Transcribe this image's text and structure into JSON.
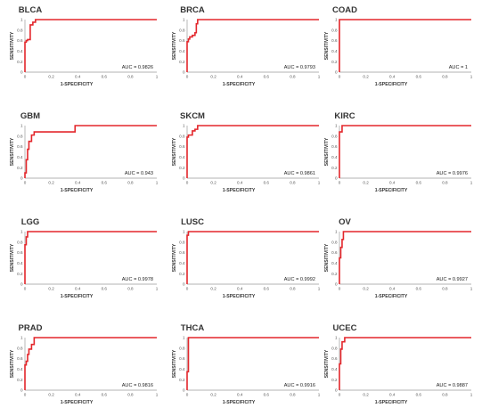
{
  "figure": {
    "xlabel": "1-SPECIFICITY",
    "ylabel": "SENSITIVITY",
    "xticks": [
      "0",
      "0.2",
      "0.4",
      "0.6",
      "0.8",
      "1"
    ],
    "yticks": [
      "0",
      "0.2",
      "0.4",
      "0.6",
      "0.8",
      "1"
    ],
    "curve_color": "#e3262b",
    "axis_color": "#9a9a9a"
  },
  "chart_data": [
    {
      "type": "line",
      "title": "BLCA",
      "auc_text": "AUC = 0.9826",
      "xlim": [
        0,
        1
      ],
      "ylim": [
        0,
        1
      ],
      "x": [
        0,
        0,
        0.01,
        0.01,
        0.02,
        0.02,
        0.04,
        0.04,
        0.06,
        0.06,
        0.08,
        0.08,
        1
      ],
      "y": [
        0,
        0.57,
        0.57,
        0.6,
        0.6,
        0.62,
        0.62,
        0.9,
        0.9,
        0.95,
        0.95,
        1,
        1
      ]
    },
    {
      "type": "line",
      "title": "BRCA",
      "auc_text": "AUC = 0.9793",
      "xlim": [
        0,
        1
      ],
      "ylim": [
        0,
        1
      ],
      "x": [
        0,
        0,
        0.01,
        0.01,
        0.02,
        0.02,
        0.04,
        0.04,
        0.06,
        0.06,
        0.07,
        0.07,
        0.08,
        0.08,
        1
      ],
      "y": [
        0,
        0.58,
        0.58,
        0.63,
        0.63,
        0.67,
        0.67,
        0.7,
        0.7,
        0.75,
        0.75,
        0.92,
        0.92,
        1,
        1
      ]
    },
    {
      "type": "line",
      "title": "COAD",
      "auc_text": "AUC = 1",
      "xlim": [
        0,
        1
      ],
      "ylim": [
        0,
        1
      ],
      "x": [
        0,
        0,
        1
      ],
      "y": [
        0,
        1,
        1
      ]
    },
    {
      "type": "line",
      "title": "GBM",
      "auc_text": "AUC = 0.943",
      "xlim": [
        0,
        1
      ],
      "ylim": [
        0,
        1
      ],
      "x": [
        0,
        0,
        0.01,
        0.01,
        0.02,
        0.02,
        0.03,
        0.03,
        0.05,
        0.05,
        0.07,
        0.07,
        0.38,
        0.38,
        1
      ],
      "y": [
        0,
        0.1,
        0.1,
        0.35,
        0.35,
        0.55,
        0.55,
        0.7,
        0.7,
        0.82,
        0.82,
        0.88,
        0.88,
        1,
        1
      ]
    },
    {
      "type": "line",
      "title": "SKCM",
      "auc_text": "AUC = 0.9861",
      "xlim": [
        0,
        1
      ],
      "ylim": [
        0,
        1
      ],
      "x": [
        0,
        0,
        0.01,
        0.01,
        0.04,
        0.04,
        0.06,
        0.06,
        0.08,
        0.08,
        1
      ],
      "y": [
        0,
        0.78,
        0.78,
        0.82,
        0.82,
        0.9,
        0.9,
        0.93,
        0.93,
        1,
        1
      ]
    },
    {
      "type": "line",
      "title": "KIRC",
      "auc_text": "AUC = 0.9976",
      "xlim": [
        0,
        1
      ],
      "ylim": [
        0,
        1
      ],
      "x": [
        0,
        0,
        0.02,
        0.02,
        1
      ],
      "y": [
        0,
        0.88,
        0.88,
        1,
        1
      ]
    },
    {
      "type": "line",
      "title": "LGG",
      "auc_text": "AUC = 0.9978",
      "xlim": [
        0,
        1
      ],
      "ylim": [
        0,
        1
      ],
      "x": [
        0,
        0,
        0.01,
        0.01,
        0.02,
        0.02,
        1
      ],
      "y": [
        0,
        0.75,
        0.75,
        0.9,
        0.9,
        1,
        1
      ]
    },
    {
      "type": "line",
      "title": "LUSC",
      "auc_text": "AUC = 0.9992",
      "xlim": [
        0,
        1
      ],
      "ylim": [
        0,
        1
      ],
      "x": [
        0,
        0,
        0.01,
        0.01,
        1
      ],
      "y": [
        0,
        0.93,
        0.93,
        1,
        1
      ]
    },
    {
      "type": "line",
      "title": "OV",
      "auc_text": "AUC = 0.9927",
      "xlim": [
        0,
        1
      ],
      "ylim": [
        0,
        1
      ],
      "x": [
        0,
        0,
        0.01,
        0.01,
        0.02,
        0.02,
        0.03,
        0.03,
        1
      ],
      "y": [
        0,
        0.5,
        0.5,
        0.7,
        0.7,
        0.85,
        0.85,
        1,
        1
      ]
    },
    {
      "type": "line",
      "title": "PRAD",
      "auc_text": "AUC = 0.9816",
      "xlim": [
        0,
        1
      ],
      "ylim": [
        0,
        1
      ],
      "x": [
        0,
        0,
        0.01,
        0.01,
        0.02,
        0.02,
        0.03,
        0.03,
        0.05,
        0.05,
        0.07,
        0.07,
        1
      ],
      "y": [
        0,
        0.48,
        0.48,
        0.55,
        0.55,
        0.68,
        0.68,
        0.78,
        0.78,
        0.87,
        0.87,
        1,
        1
      ]
    },
    {
      "type": "line",
      "title": "THCA",
      "auc_text": "AUC = 0.9916",
      "xlim": [
        0,
        1
      ],
      "ylim": [
        0,
        1
      ],
      "x": [
        0,
        0,
        0.01,
        0.01,
        1
      ],
      "y": [
        0,
        0.35,
        0.35,
        1,
        1
      ]
    },
    {
      "type": "line",
      "title": "UCEC",
      "auc_text": "AUC = 0.9887",
      "xlim": [
        0,
        1
      ],
      "ylim": [
        0,
        1
      ],
      "x": [
        0,
        0,
        0.01,
        0.01,
        0.02,
        0.02,
        0.04,
        0.04,
        1
      ],
      "y": [
        0,
        0.5,
        0.5,
        0.78,
        0.78,
        0.92,
        0.92,
        1,
        1
      ]
    }
  ]
}
